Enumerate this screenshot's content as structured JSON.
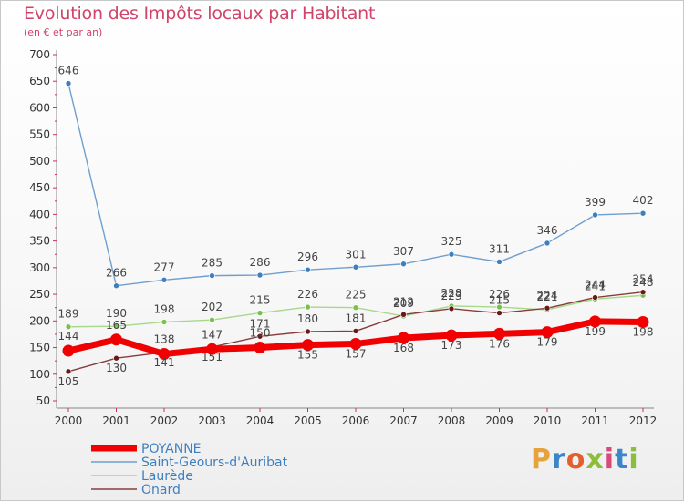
{
  "header": {
    "title": "Evolution des Impôts locaux par Habitant",
    "subtitle": "(en € et par an)"
  },
  "logo": {
    "letters": [
      "P",
      "r",
      "o",
      "x",
      "i",
      "t",
      "i"
    ],
    "colors": [
      "#e8a23a",
      "#3a86c8",
      "#e2602b",
      "#8bbf3a",
      "#d94a7a",
      "#3a86c8",
      "#8bbf3a"
    ]
  },
  "chart_data": {
    "type": "line",
    "title": "Evolution des Impôts locaux par Habitant",
    "ylabel": "(en € et par an)",
    "xlabel": "",
    "ylim": [
      50,
      700
    ],
    "yticks": [
      50,
      100,
      150,
      200,
      250,
      300,
      350,
      400,
      450,
      500,
      550,
      600,
      650,
      700
    ],
    "categories": [
      "2000",
      "2001",
      "2002",
      "2003",
      "2004",
      "2005",
      "2006",
      "2007",
      "2008",
      "2009",
      "2010",
      "2011",
      "2012"
    ],
    "grid": false,
    "legend_position": "bottom-left",
    "series": [
      {
        "name": "Saint-Geours-d'Auribat",
        "color": "#6f9fcf",
        "marker": "#3e7fc0",
        "values": [
          646,
          266,
          277,
          285,
          286,
          296,
          301,
          307,
          325,
          311,
          346,
          399,
          402
        ]
      },
      {
        "name": "Laurède",
        "color": "#a6d98a",
        "marker": "#78c24b",
        "values": [
          189,
          190,
          198,
          202,
          215,
          226,
          225,
          209,
          228,
          226,
          221,
          241,
          248
        ]
      },
      {
        "name": "Onard",
        "color": "#8a3c3c",
        "marker": "#6a1818",
        "values": [
          105,
          130,
          141,
          151,
          171,
          180,
          181,
          212,
          223,
          215,
          224,
          244,
          254
        ]
      },
      {
        "name": "POYANNE",
        "color": "#f00000",
        "marker": "#f00000",
        "values": [
          144,
          165,
          138,
          147,
          150,
          155,
          157,
          168,
          173,
          176,
          179,
          199,
          198
        ]
      }
    ]
  }
}
